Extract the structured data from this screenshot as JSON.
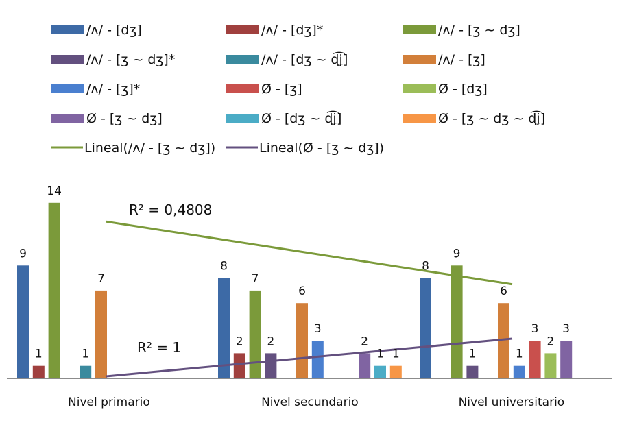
{
  "chart_data": {
    "type": "bar",
    "categories": [
      "Nivel primario",
      "Nivel secundario",
      "Nivel universitario"
    ],
    "ylim": [
      0,
      14
    ],
    "grid": false,
    "legend_position": "top",
    "series": [
      {
        "name": "/ʌ/ - [dʒ]",
        "color": "#3d6aa6",
        "values": [
          9,
          8,
          8
        ]
      },
      {
        "name": "/ʌ/ - [dʒ]*",
        "color": "#a0403e",
        "values": [
          1,
          2,
          null
        ]
      },
      {
        "name": "/ʌ/ - [ʒ ~ dʒ]",
        "color": "#7b9a3a",
        "values": [
          14,
          7,
          9
        ]
      },
      {
        "name": "/ʌ/ - [ʒ ~ dʒ]*",
        "color": "#63507f",
        "values": [
          null,
          2,
          1
        ]
      },
      {
        "name": "/ʌ/ - [dʒ ~ d͡ʝ]",
        "color": "#3a8a9e",
        "values": [
          1,
          null,
          null
        ]
      },
      {
        "name": "/ʌ/ - [ʒ]",
        "color": "#d27f3a",
        "values": [
          7,
          6,
          6
        ]
      },
      {
        "name": "/ʌ/ - [ʒ]*",
        "color": "#4a7fcf",
        "values": [
          null,
          3,
          1
        ]
      },
      {
        "name": "Ø - [ʒ]",
        "color": "#c9504d",
        "values": [
          null,
          null,
          3
        ]
      },
      {
        "name": "Ø - [dʒ]",
        "color": "#9bbd58",
        "values": [
          null,
          null,
          2
        ]
      },
      {
        "name": "Ø - [ʒ ~ dʒ]",
        "color": "#8064a2",
        "values": [
          null,
          2,
          3
        ]
      },
      {
        "name": "Ø - [dʒ ~ d͡ʝ]",
        "color": "#4bacc6",
        "values": [
          null,
          1,
          null
        ]
      },
      {
        "name": "Ø - [ʒ ~ dʒ ~ d͡ʝ]",
        "color": "#f79646",
        "values": [
          null,
          1,
          null
        ]
      }
    ],
    "trendlines": [
      {
        "name": "Lineal(/ʌ/ - [ʒ ~ dʒ])",
        "color": "#7b9a3a",
        "series": "/ʌ/ - [ʒ ~ dʒ]",
        "r2_label": "R² = 0,4808"
      },
      {
        "name": "Lineal(Ø - [ʒ ~ dʒ])",
        "color": "#63507f",
        "series": "Ø - [ʒ ~ dʒ]",
        "r2_label": "R² = 1"
      }
    ]
  }
}
